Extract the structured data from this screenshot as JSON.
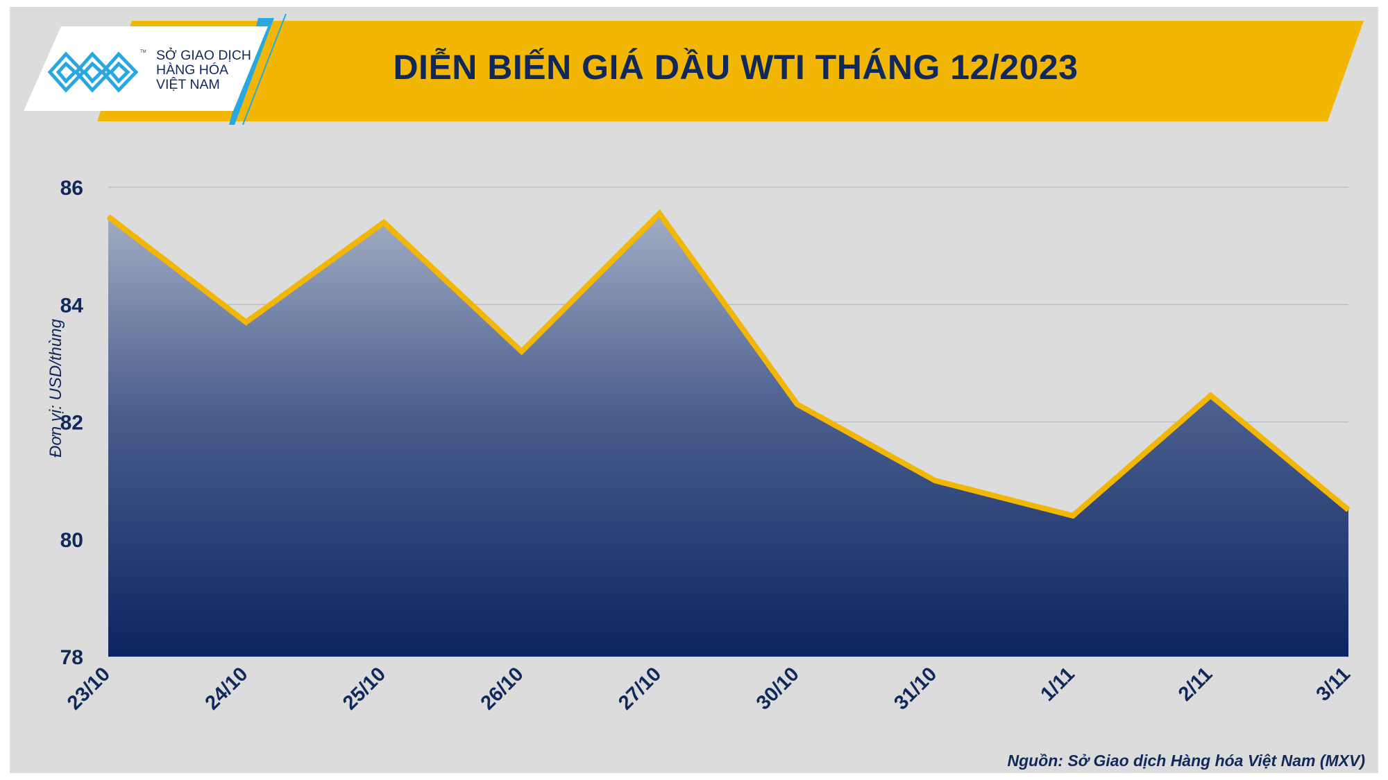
{
  "brand": {
    "logo_lines": [
      "SỞ GIAO DỊCH",
      "HÀNG HÓA",
      "VIỆT NAM"
    ],
    "trademark": "TM",
    "colors": {
      "navy": "#10285a",
      "gold": "#f2b705",
      "cyan": "#29a8e0"
    }
  },
  "chart_data": {
    "type": "area",
    "title": "DIỄN BIẾN GIÁ DẦU WTI THÁNG 12/2023",
    "ylabel": "Đơn vị: USD/thùng",
    "xlabel": "",
    "categories": [
      "23/10",
      "24/10",
      "25/10",
      "26/10",
      "27/10",
      "30/10",
      "31/10",
      "1/11",
      "2/11",
      "3/11"
    ],
    "series": [
      {
        "values": [
          85.5,
          83.7,
          85.4,
          83.2,
          85.55,
          82.3,
          81.0,
          80.4,
          82.45,
          80.5
        ]
      }
    ],
    "ylim": [
      78,
      86
    ],
    "yticks": [
      78,
      80,
      82,
      84,
      86
    ],
    "grid": true,
    "line_color": "#f2b705",
    "fill_top_color": "#a3adc3",
    "fill_bottom_color": "#0c2460"
  },
  "source": "Nguồn: Sở Giao dịch Hàng hóa Việt Nam (MXV)"
}
